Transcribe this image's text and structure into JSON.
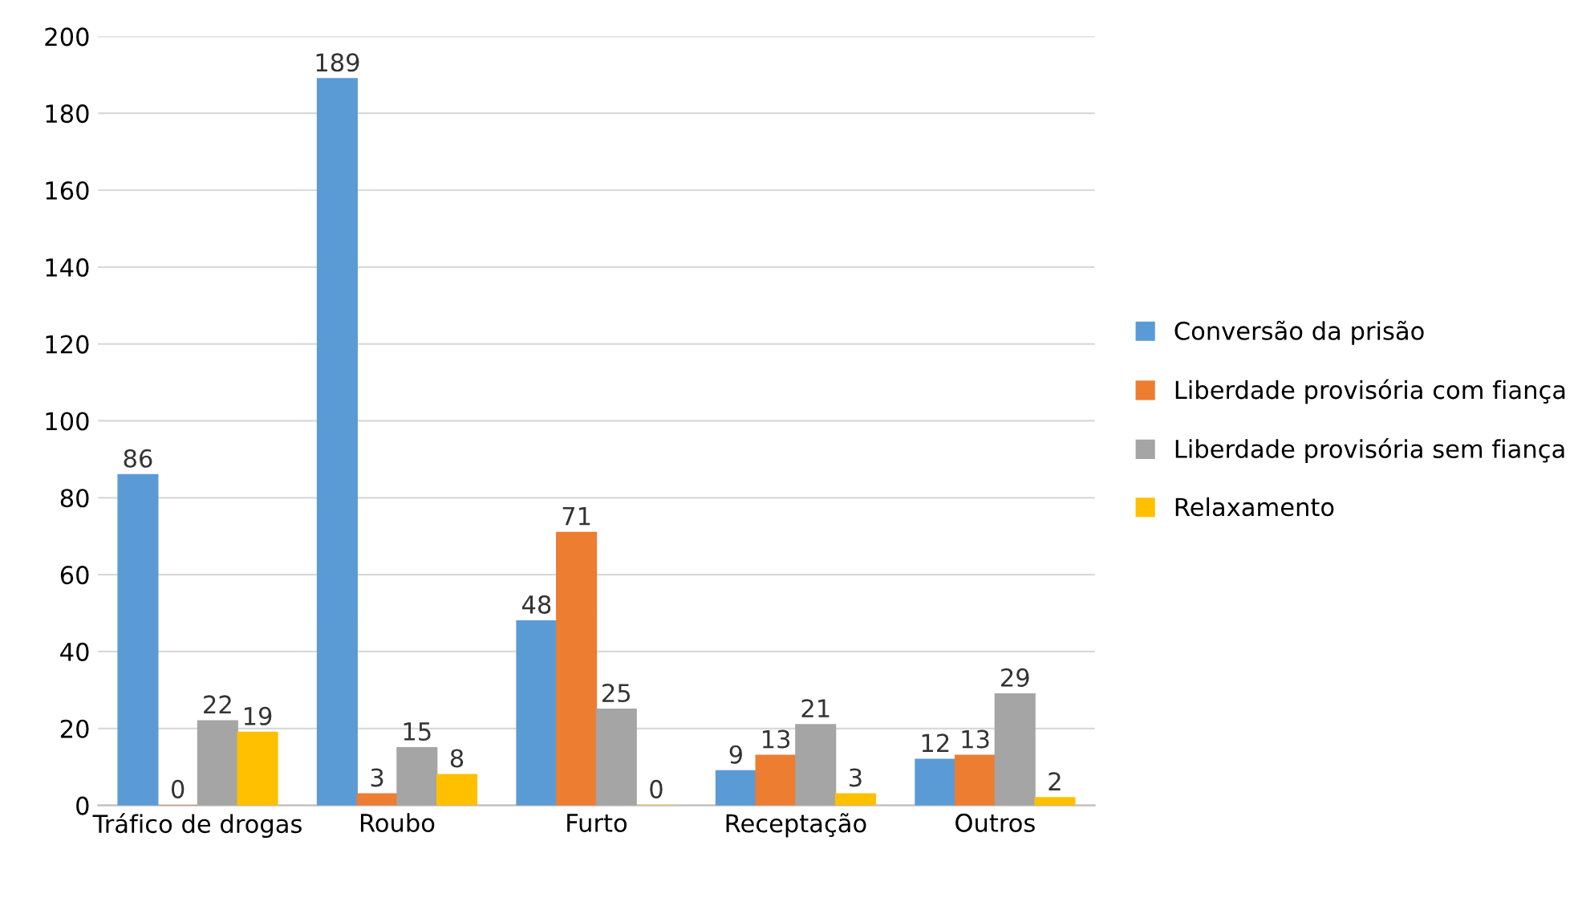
{
  "chart_data": {
    "type": "bar",
    "categories": [
      "Tráfico de drogas",
      "Roubo",
      "Furto",
      "Receptação",
      "Outros"
    ],
    "series": [
      {
        "name": "Conversão da prisão",
        "color": "#5b9bd5",
        "values": [
          86,
          189,
          48,
          9,
          12
        ]
      },
      {
        "name": "Liberdade provisória com fiança",
        "color": "#ed7d31",
        "values": [
          0,
          3,
          71,
          13,
          13
        ]
      },
      {
        "name": "Liberdade provisória sem fiança",
        "color": "#a5a5a5",
        "values": [
          22,
          15,
          25,
          21,
          29
        ]
      },
      {
        "name": "Relaxamento",
        "color": "#ffc000",
        "values": [
          19,
          8,
          0,
          3,
          2
        ]
      }
    ],
    "ylim": [
      0,
      200
    ],
    "yticks": [
      0,
      20,
      40,
      60,
      80,
      100,
      120,
      140,
      160,
      180,
      200
    ],
    "grid": "y",
    "legend": "right",
    "data_labels": true
  }
}
